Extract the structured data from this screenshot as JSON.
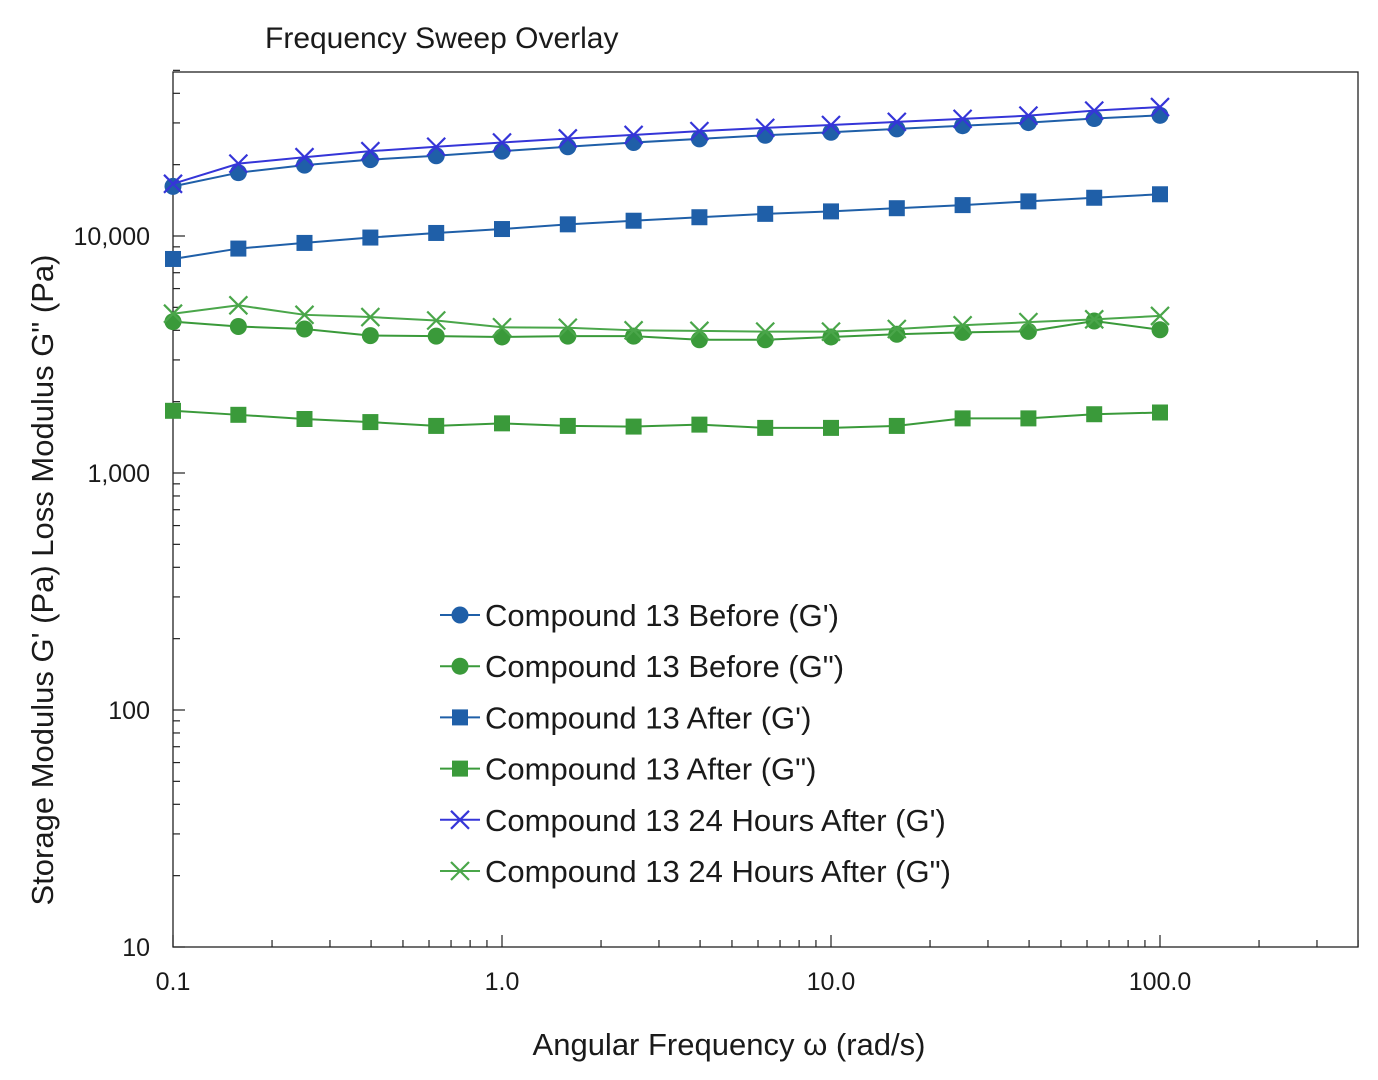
{
  "chart_data": {
    "type": "line",
    "title": "Frequency Sweep Overlay",
    "xlabel": "Angular Frequency ω (rad/s)",
    "ylabel": "Storage Modulus G' (Pa) Loss Modulus G\" (Pa)",
    "xscale": "log",
    "yscale": "log",
    "xlim": [
      0.1,
      400
    ],
    "ylim": [
      10,
      50000
    ],
    "x_ticks": [
      0.1,
      1,
      10,
      100
    ],
    "x_tick_labels": [
      "0.1",
      "1.0",
      "10.0",
      "100.0"
    ],
    "y_ticks": [
      10,
      100,
      1000,
      10000
    ],
    "y_tick_labels": [
      "10",
      "100",
      "1,000",
      "10,000"
    ],
    "grid": false,
    "legend_position": "center",
    "x": [
      0.1,
      0.158,
      0.251,
      0.398,
      0.631,
      1.0,
      1.585,
      2.512,
      3.981,
      6.31,
      10.0,
      15.85,
      25.12,
      39.81,
      63.1,
      100.0
    ],
    "series": [
      {
        "name": "Compound 13 Before (G')",
        "color": "#1f5fa8",
        "marker": "circle",
        "values": [
          16200,
          18500,
          19900,
          21000,
          21800,
          22800,
          23800,
          24800,
          25700,
          26600,
          27400,
          28300,
          29200,
          30100,
          31300,
          32300
        ]
      },
      {
        "name": "Compound 13 Before (G\")",
        "color": "#3a9a3a",
        "marker": "circle",
        "values": [
          4350,
          4150,
          4050,
          3800,
          3780,
          3750,
          3780,
          3780,
          3650,
          3650,
          3750,
          3850,
          3920,
          3960,
          4380,
          4020
        ]
      },
      {
        "name": "Compound 13 After (G')",
        "color": "#1f5fa8",
        "marker": "square",
        "values": [
          8000,
          8850,
          9350,
          9850,
          10300,
          10700,
          11200,
          11600,
          12000,
          12400,
          12700,
          13100,
          13500,
          14000,
          14500,
          15000
        ]
      },
      {
        "name": "Compound 13 After (G\")",
        "color": "#3a9a3a",
        "marker": "square",
        "values": [
          1830,
          1760,
          1690,
          1640,
          1580,
          1620,
          1580,
          1570,
          1600,
          1550,
          1550,
          1580,
          1700,
          1700,
          1770,
          1800
        ]
      },
      {
        "name": "Compound 13 24 Hours After (G')",
        "color": "#3535d8",
        "marker": "x",
        "values": [
          16600,
          20200,
          21500,
          22800,
          23800,
          24800,
          25800,
          26700,
          27700,
          28600,
          29400,
          30300,
          31200,
          32200,
          33800,
          35000
        ]
      },
      {
        "name": "Compound 13 24 Hours After (G\")",
        "color": "#4aa64a",
        "marker": "x",
        "values": [
          4700,
          5100,
          4650,
          4550,
          4400,
          4120,
          4100,
          4000,
          3980,
          3950,
          3950,
          4050,
          4200,
          4330,
          4450,
          4600
        ]
      }
    ]
  }
}
